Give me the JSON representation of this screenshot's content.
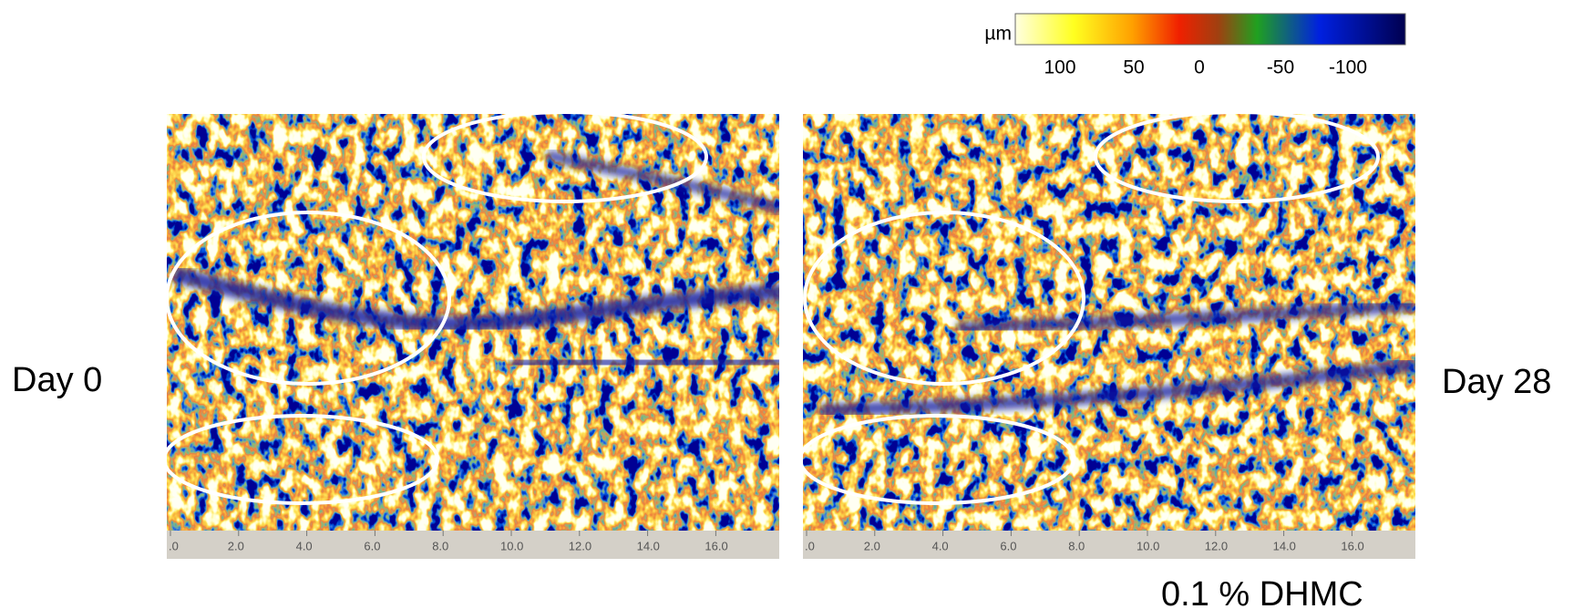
{
  "colorbar": {
    "unit": "µm",
    "labels": [
      "100",
      "50",
      "0",
      "-50",
      "-100"
    ]
  },
  "axis_ticks": [
    ".0",
    "2.0",
    "4.0",
    "6.0",
    "8.0",
    "10.0",
    "12.0",
    "14.0",
    "16.0"
  ],
  "panels": [
    {
      "label": "Day 0"
    },
    {
      "label": "Day 28"
    }
  ],
  "caption": "0.1 % DHMC"
}
